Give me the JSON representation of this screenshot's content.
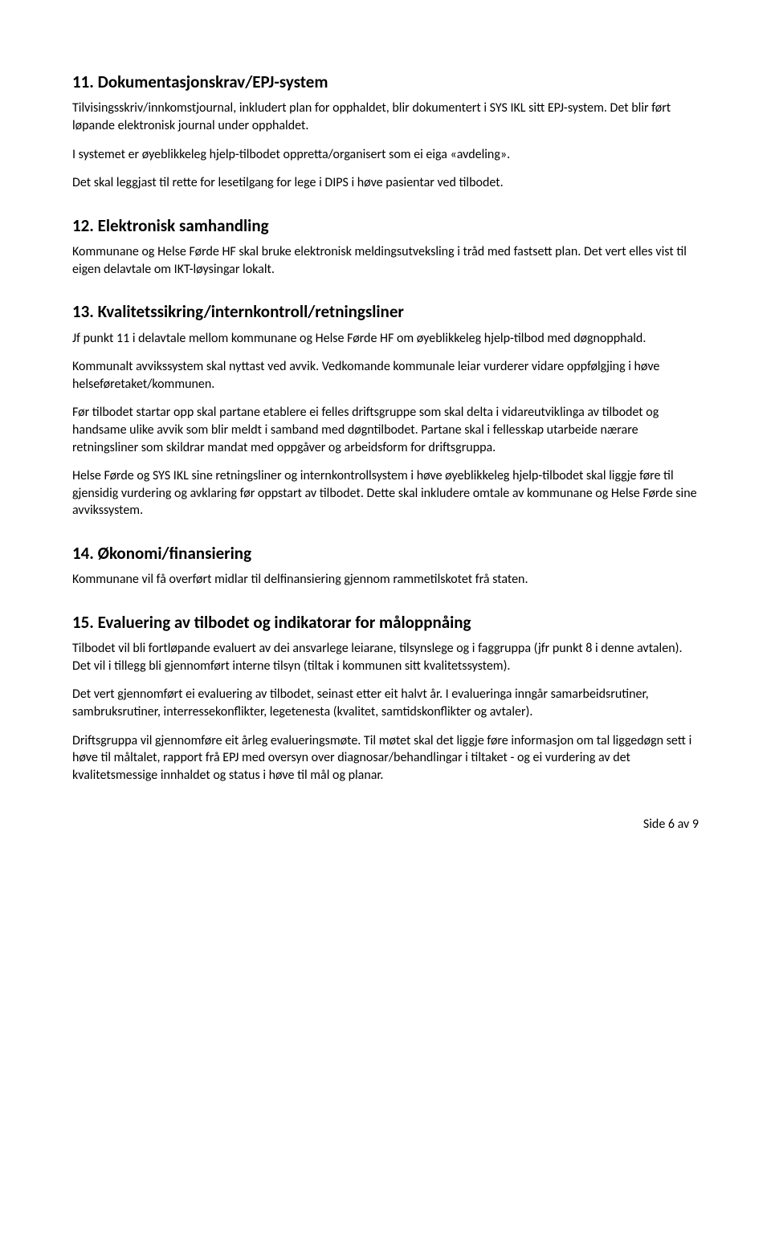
{
  "s11": {
    "heading": "11. Dokumentasjonskrav/EPJ-system",
    "p1": "Tilvisingsskriv/innkomstjournal, inkludert plan for opphaldet, blir dokumentert i SYS IKL sitt EPJ-system. Det blir ført løpande elektronisk journal under opphaldet.",
    "p2": "I systemet er øyeblikkeleg hjelp-tilbodet oppretta/organisert som ei eiga «avdeling».",
    "p3": "Det skal leggjast til rette for lesetilgang for lege i DIPS i høve pasientar ved tilbodet."
  },
  "s12": {
    "heading": "12. Elektronisk samhandling",
    "p1": "Kommunane og Helse Førde HF skal bruke elektronisk meldingsutveksling i tråd med fastsett plan. Det vert elles vist til eigen delavtale om IKT-løysingar lokalt."
  },
  "s13": {
    "heading": "13. Kvalitetssikring/internkontroll/retningsliner",
    "p1": "Jf punkt 11 i delavtale mellom kommunane og Helse Førde HF om øyeblikkeleg hjelp-tilbod med døgnopphald.",
    "p2": "Kommunalt avvikssystem skal nyttast ved avvik. Vedkomande kommunale leiar vurderer vidare oppfølgjing i høve helseføretaket/kommunen.",
    "p3": "Før tilbodet startar opp skal partane etablere ei felles driftsgruppe som skal delta i vidareutviklinga av tilbodet og handsame ulike avvik som blir meldt i samband med døgntilbodet. Partane skal i fellesskap utarbeide nærare retningsliner som skildrar mandat med oppgåver og arbeidsform for driftsgruppa.",
    "p4": "Helse Førde og SYS IKL sine retningsliner og internkontrollsystem i høve øyeblikkeleg hjelp-tilbodet skal liggje føre til gjensidig vurdering og avklaring før oppstart av tilbodet. Dette skal inkludere omtale av kommunane og Helse Førde sine avvikssystem."
  },
  "s14": {
    "heading": "14. Økonomi/finansiering",
    "p1": "Kommunane vil få overført midlar til delfinansiering gjennom rammetilskotet frå staten."
  },
  "s15": {
    "heading": "15. Evaluering av tilbodet og indikatorar for måloppnåing",
    "p1": "Tilbodet vil bli fortløpande evaluert av dei ansvarlege leiarane, tilsynslege og i faggruppa (jfr punkt 8  i denne avtalen). Det vil i tillegg bli gjennomført interne tilsyn (tiltak i kommunen sitt kvalitetssystem).",
    "p2": "Det vert gjennomført ei evaluering av tilbodet, seinast etter eit halvt år. I evalueringa inngår samarbeidsrutiner, sambruksrutiner, interressekonflikter, legetenesta (kvalitet, samtidskonflikter og avtaler).",
    "p3": "Driftsgruppa vil gjennomføre eit årleg evalueringsmøte. Til møtet skal det liggje føre informasjon om tal liggedøgn sett i høve til måltalet, rapport frå EPJ med oversyn over diagnosar/behandlingar i tiltaket - og ei vurdering av det kvalitetsmessige innhaldet og status i høve til mål og planar."
  },
  "footer": "Side 6 av 9"
}
